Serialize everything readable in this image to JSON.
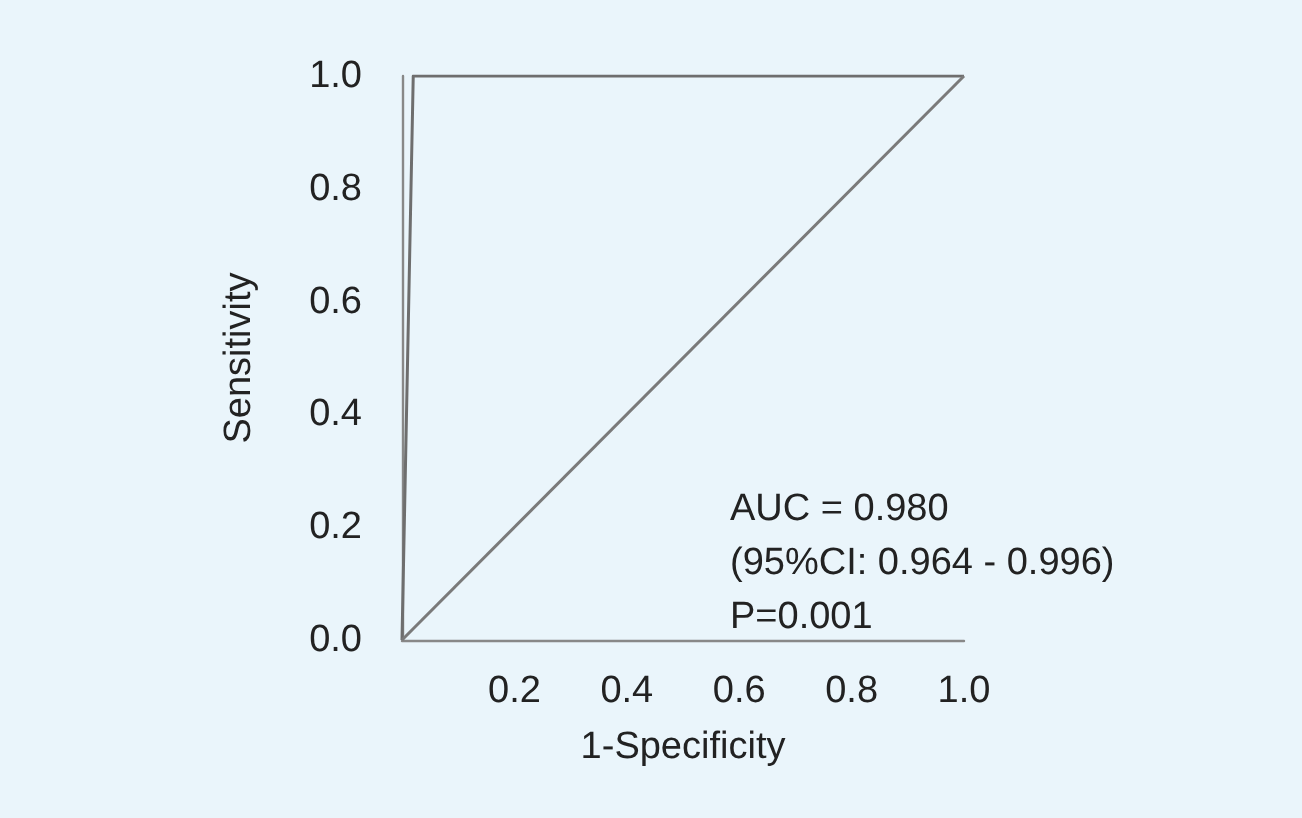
{
  "chart_data": {
    "type": "line",
    "xlabel": "1-Specificity",
    "ylabel": "Sensitivity",
    "xlim": [
      0,
      1
    ],
    "xticks": [
      0.2,
      0.4,
      0.6,
      0.8,
      {
        "value": 1,
        "label": "1.0"
      }
    ],
    "ylim": [
      0,
      1
    ],
    "yticks": [
      {
        "value": 0,
        "label": "0.0"
      },
      0.2,
      0.4,
      0.6,
      0.8,
      {
        "value": 1,
        "label": "1.0"
      }
    ],
    "series": [
      {
        "x": [
          0,
          0.02,
          1
        ],
        "values": [
          0,
          1,
          1
        ],
        "color": "#6e6e6e"
      },
      {
        "x": [
          0,
          1
        ],
        "values": [
          0,
          1
        ],
        "color": "#7a7a7a"
      }
    ],
    "annotations": [
      "AUC = 0.980",
      "(95%CI: 0.964 - 0.996)",
      "P=0.001"
    ],
    "marker": "none",
    "line_style": "solid",
    "grid": false
  }
}
